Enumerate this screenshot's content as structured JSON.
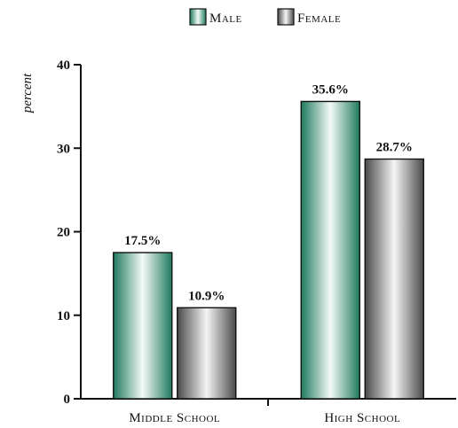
{
  "chart_data": {
    "type": "bar",
    "categories": [
      "Middle School",
      "High School"
    ],
    "series": [
      {
        "name": "Male",
        "values": [
          17.5,
          35.6
        ],
        "labels": [
          "17.5%",
          "35.6%"
        ],
        "color": "#2a8c6e"
      },
      {
        "name": "Female",
        "values": [
          10.9,
          28.7
        ],
        "labels": [
          "10.9%",
          "28.7%"
        ],
        "color": "#555555"
      }
    ],
    "ylabel": "percent",
    "ylim": [
      0,
      40
    ],
    "yticks": [
      0,
      10,
      20,
      30,
      40
    ],
    "legend": "top-center",
    "grid": false
  }
}
